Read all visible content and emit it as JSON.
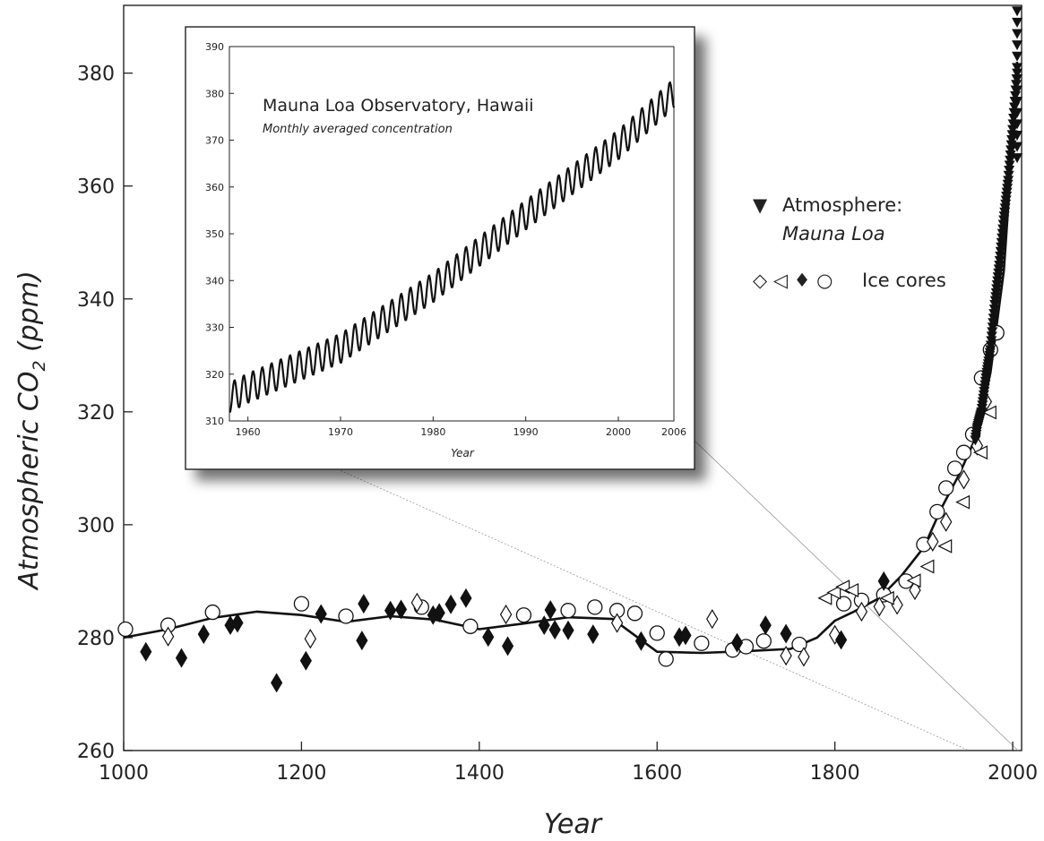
{
  "chart_data": [
    {
      "type": "scatter",
      "xlabel": "Year",
      "ylabel": "Atmospheric CO",
      "ylabel_sub": "2",
      "ylabel_unit": " (ppm)",
      "xlim": [
        1000,
        2010
      ],
      "ylim": [
        260,
        392
      ],
      "xticks": [
        1000,
        1200,
        1400,
        1600,
        1800,
        2000
      ],
      "yticks": [
        260,
        280,
        300,
        320,
        340,
        360,
        380
      ],
      "legend": {
        "position": "right",
        "entries": [
          {
            "symbol": "▼",
            "label": "Atmosphere:",
            "sublabel": "Mauna Loa"
          },
          {
            "symbols": "◇ ◁ ♦ ○",
            "label": "Ice cores"
          }
        ]
      },
      "spline": {
        "name": "smoothed fit",
        "x": [
          1000,
          1050,
          1100,
          1150,
          1200,
          1250,
          1300,
          1350,
          1400,
          1450,
          1500,
          1550,
          1600,
          1650,
          1700,
          1750,
          1780,
          1800,
          1820,
          1850,
          1875,
          1900,
          1920,
          1940,
          1960,
          1975,
          1990,
          2000,
          2005
        ],
        "y": [
          280,
          281.5,
          283.5,
          284.6,
          284,
          282.8,
          283.8,
          283.2,
          281.5,
          282.5,
          283.6,
          283.3,
          277.5,
          277.3,
          277.6,
          278,
          280,
          283,
          284.5,
          287,
          291,
          296,
          303,
          309,
          316,
          327,
          345,
          368,
          382
        ]
      },
      "series": [
        {
          "name": "Ice cores (open circle)",
          "marker": "circle",
          "x": [
            1002,
            1050,
            1100,
            1200,
            1250,
            1335,
            1390,
            1450,
            1500,
            1530,
            1555,
            1575,
            1600,
            1610,
            1650,
            1685,
            1700,
            1720,
            1760,
            1810,
            1830,
            1855,
            1880,
            1900,
            1915,
            1925,
            1935,
            1945,
            1955,
            1965,
            1975,
            1982
          ],
          "y": [
            281.5,
            282.2,
            284.5,
            286,
            283.8,
            285.4,
            282,
            284,
            284.8,
            285.4,
            284.8,
            284.3,
            280.8,
            276.2,
            279,
            277.8,
            278.4,
            279.4,
            278.8,
            286,
            286.6,
            287.6,
            290,
            296.5,
            302.3,
            306.5,
            310,
            312.8,
            316,
            326,
            331,
            334
          ]
        },
        {
          "name": "Ice cores (open diamond)",
          "marker": "diamond",
          "x": [
            1050,
            1210,
            1330,
            1430,
            1555,
            1662,
            1745,
            1765,
            1800,
            1830,
            1850,
            1870,
            1890,
            1910,
            1925,
            1945,
            1960,
            1970
          ],
          "y": [
            280.2,
            279.8,
            286.2,
            284.1,
            282.6,
            283.3,
            276.8,
            276.6,
            280.5,
            284.6,
            285.5,
            285.8,
            288.4,
            297,
            300.5,
            308,
            314,
            321.8
          ]
        },
        {
          "name": "Ice cores (open triangle)",
          "marker": "triangle",
          "x": [
            1790,
            1800,
            1810,
            1820,
            1860,
            1890,
            1905,
            1925,
            1945,
            1965,
            1975
          ],
          "y": [
            287,
            288,
            289,
            288.4,
            287,
            290.1,
            292.6,
            296.2,
            304,
            312.8,
            319.9
          ]
        },
        {
          "name": "Ice cores (filled diamond)",
          "marker": "diamond-filled",
          "x": [
            1025,
            1065,
            1090,
            1120,
            1128,
            1172,
            1205,
            1222,
            1268,
            1270,
            1300,
            1312,
            1348,
            1355,
            1368,
            1385,
            1410,
            1432,
            1473,
            1480,
            1485,
            1500,
            1528,
            1582,
            1625,
            1632,
            1690,
            1722,
            1745,
            1807,
            1855
          ],
          "y": [
            277.5,
            276.4,
            280.6,
            282.2,
            282.6,
            272,
            275.9,
            284.2,
            279.5,
            286,
            284.8,
            285,
            284,
            284.4,
            285.9,
            287,
            280.1,
            278.5,
            282.2,
            284.9,
            281.4,
            281.3,
            280.6,
            279.4,
            280.1,
            280.4,
            279.1,
            282.2,
            280.7,
            279.6,
            290
          ]
        },
        {
          "name": "Atmosphere: Mauna Loa",
          "marker": "triangle-down-filled",
          "x": [
            1958,
            1960,
            1965,
            1970,
            1975,
            1980,
            1985,
            1990,
            1995,
            2000,
            2005
          ],
          "y": [
            315,
            317,
            320,
            326,
            331,
            339,
            346,
            354,
            361,
            370,
            380
          ]
        }
      ]
    },
    {
      "type": "line",
      "title": "Mauna Loa Observatory, Hawaii",
      "subtitle": "Monthly averaged concentration",
      "xlabel": "Year",
      "xlim": [
        1958,
        2006
      ],
      "ylim": [
        310,
        390
      ],
      "xticks": [
        1960,
        1970,
        1980,
        1990,
        2000,
        2006
      ],
      "yticks": [
        310,
        320,
        330,
        340,
        350,
        360,
        370,
        380,
        390
      ],
      "trend": {
        "x": [
          1958,
          1960,
          1970,
          1980,
          1990,
          2000,
          2006
        ],
        "y": [
          315,
          317,
          325.5,
          338.5,
          354,
          369,
          380
        ]
      },
      "seasonal_amplitude": 3.2
    }
  ]
}
